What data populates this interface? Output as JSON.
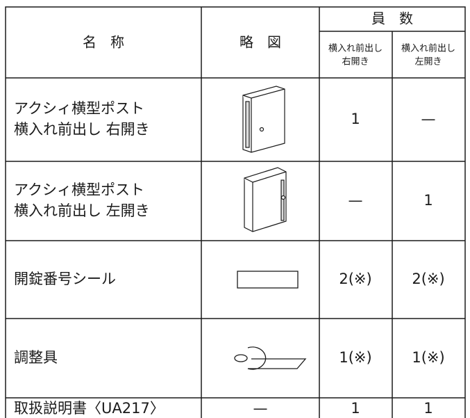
{
  "table": {
    "header": {
      "name": "名　称",
      "sketch": "略　図",
      "count": "員　数",
      "sub": [
        [
          "横入れ前出し",
          "右開き"
        ],
        [
          "横入れ前出し",
          "左開き"
        ]
      ]
    },
    "rows": [
      {
        "name": [
          "アクシィ横型ポスト",
          "横入れ前出し 右開き"
        ],
        "counts": [
          "1",
          "—"
        ]
      },
      {
        "name": [
          "アクシィ横型ポスト",
          "横入れ前出し 左開き"
        ],
        "counts": [
          "—",
          "1"
        ]
      },
      {
        "name": [
          "開錠番号シール"
        ],
        "counts": [
          "2(※)",
          "2(※)"
        ]
      },
      {
        "name": [
          "調整具"
        ],
        "counts": [
          "1(※)",
          "1(※)"
        ]
      },
      {
        "name": [
          "取扱説明書〈UA217〉"
        ],
        "sketch": "—",
        "counts": [
          "1",
          "1"
        ]
      }
    ]
  }
}
